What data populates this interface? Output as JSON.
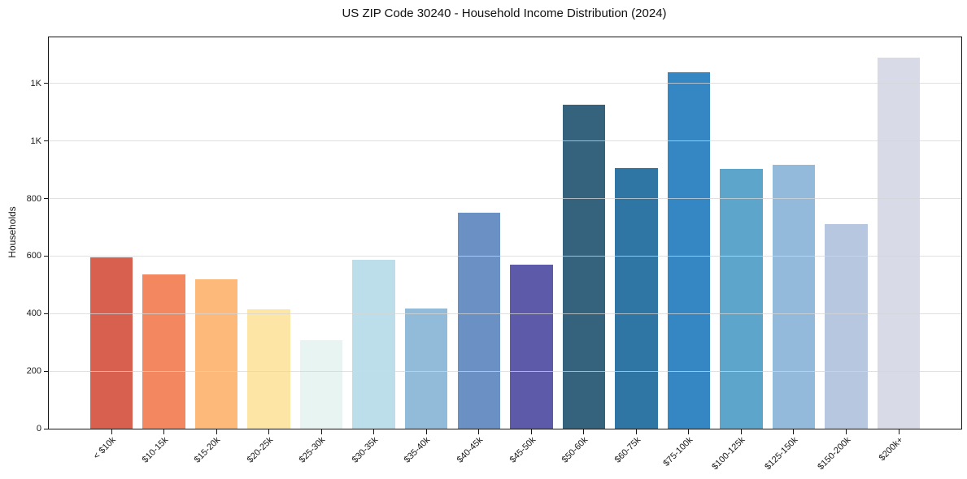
{
  "title": "US ZIP Code 30240 - Household Income Distribution (2024)",
  "chart_data": {
    "type": "bar",
    "title": "US ZIP Code 30240 - Household Income Distribution (2024)",
    "xlabel": "",
    "ylabel": "Households",
    "categories": [
      "< $10k",
      "$10-15k",
      "$15-20k",
      "$20-25k",
      "$25-30k",
      "$30-35k",
      "$35-40k",
      "$40-45k",
      "$45-50k",
      "$50-60k",
      "$60-75k",
      "$75-100k",
      "$100-125k",
      "$125-150k",
      "$150-200k",
      "$200k+"
    ],
    "values": [
      595,
      536,
      520,
      415,
      308,
      586,
      419,
      750,
      570,
      1125,
      905,
      1240,
      903,
      918,
      710,
      1290
    ],
    "bar_colors": [
      "#d7604f",
      "#f3875f",
      "#fcb979",
      "#fde5a5",
      "#e8f4f1",
      "#bcdeeb",
      "#91bbd8",
      "#6a90c4",
      "#5c5aa9",
      "#35637e",
      "#2f76a4",
      "#3487c3",
      "#5ea5cc",
      "#94badb",
      "#b7c7e0",
      "#d8dae8"
    ],
    "ylim": [
      0,
      1360
    ],
    "y_ticks": [
      {
        "value": 0,
        "label": "0"
      },
      {
        "value": 200,
        "label": "200"
      },
      {
        "value": 400,
        "label": "400"
      },
      {
        "value": 600,
        "label": "600"
      },
      {
        "value": 800,
        "label": "800"
      },
      {
        "value": 1000,
        "label": "1K"
      },
      {
        "value": 1200,
        "label": "1K"
      }
    ],
    "grid": true,
    "grid_color": "rgba(214,214,214,0.75)",
    "axis_color": "#151515",
    "legend": null
  }
}
